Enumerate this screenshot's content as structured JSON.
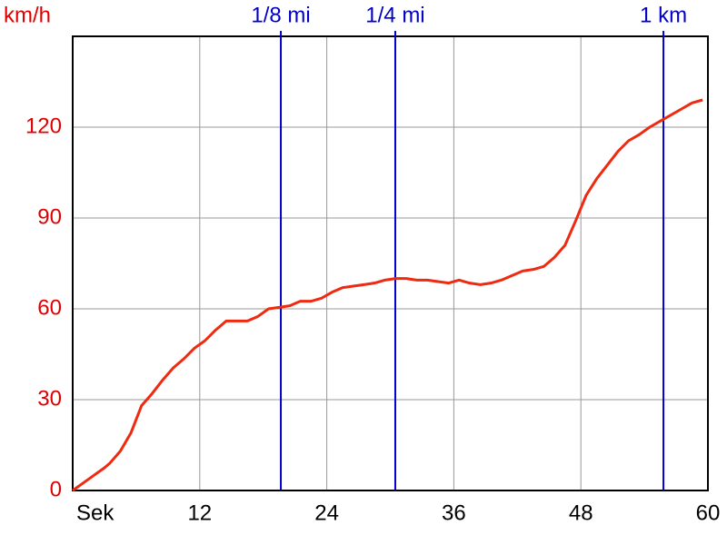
{
  "chart_data": {
    "type": "line",
    "y_label": "km/h",
    "x": [
      0,
      1,
      2,
      3,
      3.5,
      4.5,
      5.5,
      6.5,
      7.5,
      8.5,
      9.5,
      10.5,
      11.5,
      12.5,
      13.5,
      14.5,
      15.5,
      16.5,
      17.5,
      18.5,
      19.5,
      20.5,
      21.5,
      22.5,
      23.5,
      24.5,
      25.5,
      26.5,
      27.5,
      28.5,
      29.5,
      30.5,
      31.5,
      32.5,
      33.5,
      34.5,
      35.5,
      36.5,
      37.5,
      38.5,
      39.5,
      40.5,
      41.5,
      42.5,
      43.5,
      44.5,
      45.5,
      46.5,
      47.5,
      48.5,
      49.5,
      50.5,
      51.5,
      52.5,
      53.5,
      54.5,
      55.5,
      56.5,
      57.5,
      58.5,
      59.5
    ],
    "values": [
      0,
      2.5,
      5,
      7.5,
      9,
      13,
      19,
      28,
      32,
      36.5,
      40.5,
      43.5,
      47,
      49.5,
      53,
      56,
      56,
      56,
      57.5,
      60,
      60.5,
      61,
      62.5,
      62.5,
      63.5,
      65.5,
      67,
      67.5,
      68,
      68.5,
      69.5,
      70,
      70,
      69.5,
      69.5,
      69,
      68.5,
      69.5,
      68.5,
      68,
      68.5,
      69.5,
      71,
      72.5,
      73,
      74,
      77,
      81,
      89,
      97.5,
      103,
      107.5,
      112,
      115.5,
      117.5,
      120,
      122,
      124,
      126,
      128,
      129
    ],
    "color": "#ee2a10",
    "xlim": [
      0,
      60
    ],
    "ylim": [
      0,
      150
    ],
    "xticks": [
      {
        "value": 0,
        "label": "Sek"
      },
      12,
      24,
      36,
      48,
      60
    ],
    "yticks": [
      0,
      30,
      60,
      90,
      120
    ],
    "grid": true,
    "markers": [
      {
        "label": "1/8 mi",
        "x": 19.66
      },
      {
        "label": "1/4 mi",
        "x": 30.47
      },
      {
        "label": "1 km",
        "x": 55.8
      }
    ],
    "marker_color": "#0000c8"
  }
}
